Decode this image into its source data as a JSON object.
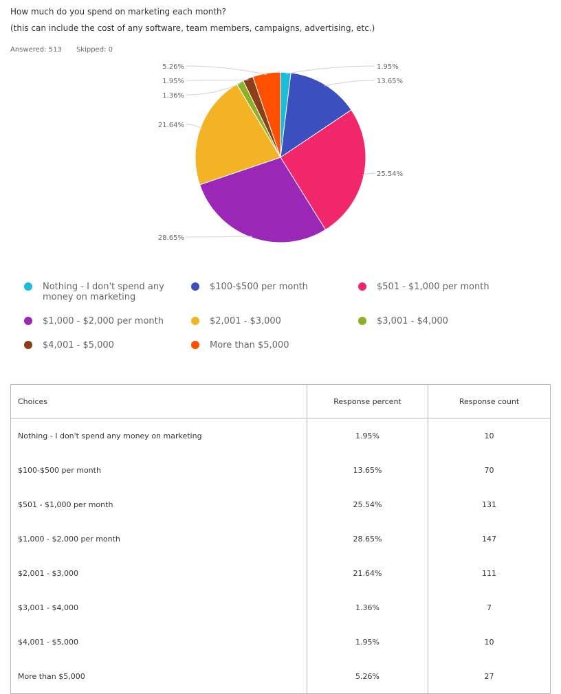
{
  "question": "How much do you spend on marketing each month?",
  "subtitle": "(this can include the cost of any software, team members, campaigns, advertising, etc.)",
  "stats": {
    "answered": "Answered: 513",
    "skipped": "Skipped: 0"
  },
  "legend_items": [
    {
      "label": "Nothing - I don't spend any money on marketing",
      "color": "#1bbcd8"
    },
    {
      "label": "$100-$500 per month",
      "color": "#3b4fbf"
    },
    {
      "label": "$501 - $1,000 per month",
      "color": "#f2266a"
    },
    {
      "label": "$1,000 - $2,000 per month",
      "color": "#9b27b6"
    },
    {
      "label": "$2,001 - $3,000",
      "color": "#f3b324"
    },
    {
      "label": "$3,001 - $4,000",
      "color": "#8bb227"
    },
    {
      "label": "$4,001 - $5,000",
      "color": "#8d3f18"
    },
    {
      "label": "More than $5,000",
      "color": "#ff4f00"
    }
  ],
  "table": {
    "headers": [
      "Choices",
      "Response percent",
      "Response count"
    ],
    "rows": [
      [
        "Nothing - I don't spend any money on marketing",
        "1.95%",
        "10"
      ],
      [
        "$100-$500 per month",
        "13.65%",
        "70"
      ],
      [
        "$501 - $1,000 per month",
        "25.54%",
        "131"
      ],
      [
        "$1,000 - $2,000 per month",
        "28.65%",
        "147"
      ],
      [
        "$2,001 - $3,000",
        "21.64%",
        "111"
      ],
      [
        "$3,001 - $4,000",
        "1.36%",
        "7"
      ],
      [
        "$4,001 - $5,000",
        "1.95%",
        "10"
      ],
      [
        "More than $5,000",
        "5.26%",
        "27"
      ]
    ]
  },
  "chart_data": {
    "type": "pie",
    "categories": [
      "Nothing - I don't spend any money on marketing",
      "$100-$500 per month",
      "$501 - $1,000 per month",
      "$1,000 - $2,000 per month",
      "$2,001 - $3,000",
      "$3,001 - $4,000",
      "$4,001 - $5,000",
      "More than $5,000"
    ],
    "values": [
      1.95,
      13.65,
      25.54,
      28.65,
      21.64,
      1.36,
      1.95,
      5.26
    ],
    "value_labels": [
      "1.95%",
      "13.65%",
      "25.54%",
      "28.65%",
      "21.64%",
      "1.36%",
      "1.95%",
      "5.26%"
    ],
    "counts": [
      10,
      70,
      131,
      147,
      111,
      7,
      10,
      27
    ],
    "colors": [
      "#1bbcd8",
      "#3b4fbf",
      "#f2266a",
      "#9b27b6",
      "#f3b324",
      "#8bb227",
      "#8d3f18",
      "#ff4f00"
    ],
    "legend_position": "bottom"
  }
}
